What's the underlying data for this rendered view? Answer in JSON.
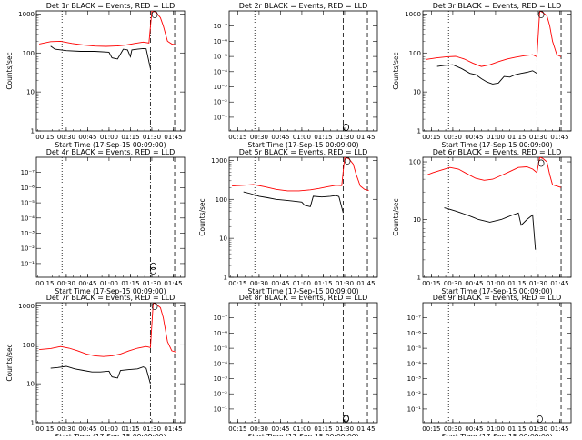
{
  "figure": {
    "colors": {
      "events": "#000000",
      "lld": "#ff0000",
      "axes": "#000000",
      "background": "#ffffff"
    },
    "x_tick_labels": [
      "00:15",
      "00:30",
      "00:45",
      "01:00",
      "01:15",
      "01:30",
      "01:45"
    ],
    "x_label": "Start Time (17-Sep-15 00:09:00)",
    "y_label": "Counts/sec",
    "marker_glyph": "O"
  },
  "chart_data": [
    {
      "type": "line",
      "title": "Det 1r BLACK = Events, RED = LLD",
      "yscale": "log",
      "xlim": [
        9,
        113
      ],
      "ylim": [
        1,
        1200
      ],
      "ytick_labels": [
        "1",
        "10",
        "100",
        "1000"
      ],
      "xlabel": "Start Time (17-Sep-15 00:09:00)",
      "ylabel": "Counts/sec",
      "series": [
        {
          "name": "Events",
          "color": "#000000",
          "x": [
            19,
            22,
            30,
            40,
            50,
            60,
            62,
            66,
            70,
            73,
            75,
            76,
            80,
            84,
            86,
            89
          ],
          "y": [
            150,
            125,
            115,
            110,
            110,
            105,
            75,
            70,
            125,
            120,
            80,
            120,
            125,
            130,
            128,
            40
          ]
        },
        {
          "name": "LLD",
          "color": "#ff0000",
          "x": [
            11,
            19,
            26,
            34,
            42,
            50,
            58,
            66,
            72,
            78,
            84,
            88,
            90,
            93,
            96,
            98,
            101,
            104,
            107
          ],
          "y": [
            170,
            195,
            200,
            175,
            160,
            150,
            148,
            152,
            160,
            175,
            190,
            180,
            1200,
            1100,
            800,
            500,
            200,
            170,
            160
          ]
        }
      ],
      "vlines": [
        {
          "x": 27,
          "style": "dotted"
        },
        {
          "x": 89,
          "style": "dashdot"
        },
        {
          "x": 106,
          "style": "dashed"
        }
      ],
      "markers": [
        {
          "x": 92,
          "y": 1000
        }
      ]
    },
    {
      "type": "line",
      "title": "Det 2r BLACK = Events, RED = LLD",
      "yscale": "log",
      "xlim": [
        9,
        113
      ],
      "ylim": [
        0.8,
        1e-08
      ],
      "ytick_labels": [
        "10⁰",
        "10⁻¹",
        "10⁻²",
        "10⁻³",
        "10⁻⁴",
        "10⁻⁵",
        "10⁻⁶",
        "10⁻⁷",
        "10⁻⁸"
      ],
      "xlabel": "Start Time (17-Sep-15 00:09:00)",
      "ylabel": "",
      "series": [],
      "vlines": [
        {
          "x": 27,
          "style": "dotted"
        },
        {
          "x": 89,
          "style": "dashed"
        },
        {
          "x": 106,
          "style": "dashed"
        }
      ],
      "markers": [
        {
          "x": 91,
          "y": 0.6
        },
        {
          "x": 91,
          "y": 0.8
        }
      ]
    },
    {
      "type": "line",
      "title": "Det 3r BLACK = Events, RED = LLD",
      "yscale": "log",
      "xlim": [
        9,
        113
      ],
      "ylim": [
        1,
        1200
      ],
      "ytick_labels": [
        "1",
        "10",
        "100",
        "1000"
      ],
      "xlabel": "Start Time (17-Sep-15 00:09:00)",
      "ylabel": "Counts/sec",
      "series": [
        {
          "name": "Events",
          "color": "#000000",
          "x": [
            19,
            24,
            30,
            36,
            42,
            46,
            50,
            54,
            58,
            62,
            66,
            70,
            74,
            78,
            82,
            86,
            89
          ],
          "y": [
            45,
            48,
            50,
            40,
            30,
            28,
            22,
            18,
            16,
            17,
            25,
            24,
            28,
            30,
            32,
            35,
            30
          ]
        },
        {
          "name": "LLD",
          "color": "#ff0000",
          "x": [
            11,
            19,
            26,
            32,
            38,
            44,
            50,
            56,
            62,
            68,
            74,
            80,
            86,
            89,
            91,
            93,
            96,
            98,
            100,
            103,
            106
          ],
          "y": [
            68,
            75,
            80,
            82,
            70,
            55,
            45,
            50,
            60,
            70,
            78,
            85,
            90,
            80,
            1200,
            1100,
            900,
            500,
            200,
            90,
            80
          ]
        }
      ],
      "vlines": [
        {
          "x": 27,
          "style": "dotted"
        },
        {
          "x": 89,
          "style": "dashdot"
        },
        {
          "x": 106,
          "style": "dashed"
        }
      ],
      "markers": [
        {
          "x": 92,
          "y": 1000
        }
      ]
    },
    {
      "type": "line",
      "title": "Det 4r BLACK = Events, RED = LLD",
      "yscale": "log",
      "xlim": [
        9,
        113
      ],
      "ylim": [
        0.8,
        1e-08
      ],
      "ytick_labels": [
        "10⁰",
        "10⁻¹",
        "10⁻²",
        "10⁻³",
        "10⁻⁴",
        "10⁻⁵",
        "10⁻⁶",
        "10⁻⁷",
        "10⁻⁸"
      ],
      "xlabel": "Start Time (17-Sep-15 00:09:00)",
      "ylabel": "",
      "series": [],
      "vlines": [
        {
          "x": 27,
          "style": "dotted"
        },
        {
          "x": 89,
          "style": "dashdot"
        },
        {
          "x": 106,
          "style": "dashed"
        }
      ],
      "markers": [
        {
          "x": 91,
          "y": 0.15
        },
        {
          "x": 91,
          "y": 0.3
        }
      ]
    },
    {
      "type": "line",
      "title": "Det 5r BLACK = Events, RED = LLD",
      "yscale": "log",
      "xlim": [
        9,
        113
      ],
      "ylim": [
        1,
        1200
      ],
      "ytick_labels": [
        "1",
        "10",
        "100",
        "1000"
      ],
      "xlabel": "Start Time (17-Sep-15 00:09:00)",
      "ylabel": "Counts/sec",
      "series": [
        {
          "name": "Events",
          "color": "#000000",
          "x": [
            19,
            24,
            30,
            36,
            42,
            48,
            54,
            60,
            62,
            66,
            68,
            74,
            80,
            84,
            86,
            89
          ],
          "y": [
            155,
            140,
            120,
            110,
            100,
            95,
            90,
            85,
            70,
            65,
            120,
            115,
            120,
            125,
            118,
            45
          ]
        },
        {
          "name": "LLD",
          "color": "#ff0000",
          "x": [
            11,
            19,
            26,
            34,
            42,
            50,
            58,
            66,
            72,
            78,
            84,
            88,
            90,
            93,
            96,
            98,
            101,
            104,
            107
          ],
          "y": [
            220,
            230,
            240,
            210,
            180,
            165,
            165,
            175,
            190,
            210,
            230,
            225,
            1200,
            1100,
            800,
            450,
            220,
            180,
            170
          ]
        }
      ],
      "vlines": [
        {
          "x": 27,
          "style": "dotted"
        },
        {
          "x": 89,
          "style": "dashed"
        },
        {
          "x": 106,
          "style": "dashed"
        }
      ],
      "markers": [
        {
          "x": 92,
          "y": 1000
        }
      ]
    },
    {
      "type": "line",
      "title": "Det 6r BLACK = Events, RED = LLD",
      "yscale": "log",
      "xlim": [
        9,
        113
      ],
      "ylim": [
        1,
        120
      ],
      "ytick_labels": [
        "1",
        "10",
        "100"
      ],
      "xlabel": "Start Time (17-Sep-15 00:09:00)",
      "ylabel": "Counts/sec",
      "series": [
        {
          "name": "Events",
          "color": "#000000",
          "x": [
            24,
            28,
            32,
            36,
            40,
            44,
            48,
            52,
            56,
            60,
            64,
            68,
            72,
            76,
            78,
            82,
            86,
            88
          ],
          "y": [
            16,
            15,
            14,
            13,
            12,
            11,
            10,
            9.5,
            9,
            9.5,
            10,
            11,
            12,
            13,
            8,
            10,
            12,
            3
          ]
        },
        {
          "name": "LLD",
          "color": "#ff0000",
          "x": [
            11,
            16,
            22,
            28,
            34,
            40,
            46,
            52,
            58,
            64,
            70,
            76,
            82,
            86,
            89,
            91,
            93,
            96,
            98,
            100,
            103,
            106
          ],
          "y": [
            58,
            65,
            72,
            80,
            75,
            62,
            52,
            48,
            50,
            58,
            68,
            80,
            82,
            75,
            65,
            120,
            115,
            100,
            60,
            40,
            38,
            36
          ]
        }
      ],
      "vlines": [
        {
          "x": 27,
          "style": "dotted"
        },
        {
          "x": 89,
          "style": "dashdot"
        },
        {
          "x": 106,
          "style": "dashed"
        }
      ],
      "markers": [
        {
          "x": 92,
          "y": 95
        }
      ]
    },
    {
      "type": "line",
      "title": "Det 7r BLACK = Events, RED = LLD",
      "yscale": "log",
      "xlim": [
        9,
        113
      ],
      "ylim": [
        1,
        1200
      ],
      "ytick_labels": [
        "1",
        "10",
        "100",
        "1000"
      ],
      "xlabel": "Start Time (17-Sep-15 00:09:00)",
      "ylabel": "Counts/sec",
      "series": [
        {
          "name": "Events",
          "color": "#000000",
          "x": [
            19,
            24,
            30,
            36,
            42,
            48,
            54,
            60,
            62,
            66,
            68,
            74,
            80,
            84,
            86,
            89
          ],
          "y": [
            25,
            26,
            28,
            24,
            22,
            20,
            20,
            21,
            15,
            14,
            22,
            23,
            24,
            27,
            25,
            10
          ]
        },
        {
          "name": "LLD",
          "color": "#ff0000",
          "x": [
            11,
            19,
            26,
            32,
            38,
            44,
            50,
            56,
            62,
            68,
            74,
            80,
            86,
            89,
            91,
            93,
            96,
            98,
            101,
            104,
            107
          ],
          "y": [
            75,
            80,
            90,
            82,
            70,
            58,
            52,
            50,
            52,
            58,
            70,
            82,
            90,
            85,
            1200,
            1100,
            900,
            500,
            120,
            70,
            65
          ]
        }
      ],
      "vlines": [
        {
          "x": 27,
          "style": "dotted"
        },
        {
          "x": 89,
          "style": "dashdot"
        },
        {
          "x": 106,
          "style": "dashed"
        }
      ],
      "markers": [
        {
          "x": 92,
          "y": 1000
        }
      ]
    },
    {
      "type": "line",
      "title": "Det 8r BLACK = Events, RED = LLD",
      "yscale": "log",
      "xlim": [
        9,
        113
      ],
      "ylim": [
        0.8,
        1e-08
      ],
      "ytick_labels": [
        "10⁰",
        "10⁻¹",
        "10⁻²",
        "10⁻³",
        "10⁻⁴",
        "10⁻⁵",
        "10⁻⁶",
        "10⁻⁷",
        "10⁻⁸"
      ],
      "xlabel": "Start Time (17-Sep-15 00:09:00)",
      "ylabel": "",
      "series": [],
      "vlines": [
        {
          "x": 27,
          "style": "dotted"
        },
        {
          "x": 89,
          "style": "dashed"
        },
        {
          "x": 106,
          "style": "dashed"
        }
      ],
      "markers": [
        {
          "x": 91,
          "y": 0.4
        },
        {
          "x": 91,
          "y": 0.6
        }
      ]
    },
    {
      "type": "line",
      "title": "Det 9r BLACK = Events, RED = LLD",
      "yscale": "log",
      "xlim": [
        9,
        113
      ],
      "ylim": [
        0.8,
        1e-08
      ],
      "ytick_labels": [
        "10⁰",
        "10⁻¹",
        "10⁻²",
        "10⁻³",
        "10⁻⁴",
        "10⁻⁵",
        "10⁻⁶",
        "10⁻⁷",
        "10⁻⁸"
      ],
      "xlabel": "Start Time (17-Sep-15 00:09:00)",
      "ylabel": "",
      "series": [],
      "vlines": [
        {
          "x": 27,
          "style": "dotted"
        },
        {
          "x": 89,
          "style": "dashdot"
        },
        {
          "x": 106,
          "style": "dashed"
        }
      ],
      "markers": [
        {
          "x": 91,
          "y": 0.5
        }
      ]
    }
  ]
}
